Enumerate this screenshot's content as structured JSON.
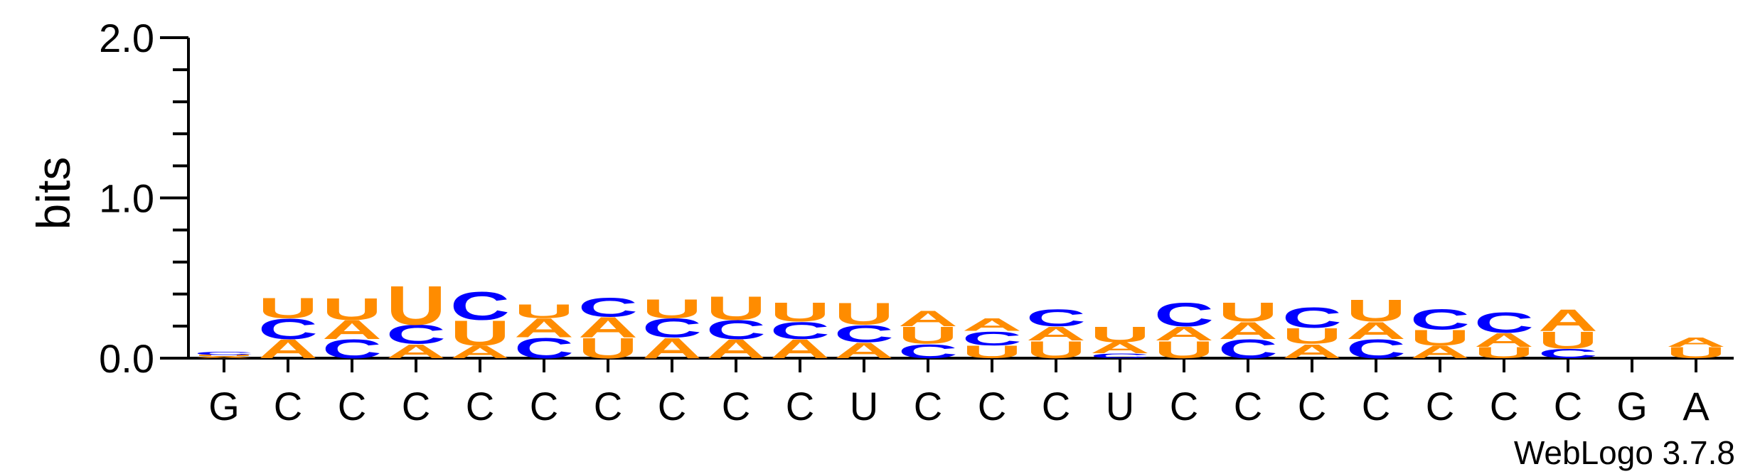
{
  "chart_data": {
    "type": "sequence-logo",
    "title": "",
    "xlabel": "",
    "ylabel": "bits",
    "ylim": [
      0,
      2.0
    ],
    "yticks": [
      "0.0",
      "1.0",
      "2.0"
    ],
    "credit": "WebLogo 3.7.8",
    "colors": {
      "A": "#ff8c00",
      "U": "#ff8c00",
      "C": "#0000ff",
      "G": "#ffa500"
    },
    "categories": [
      "G",
      "C",
      "C",
      "C",
      "C",
      "C",
      "C",
      "C",
      "C",
      "C",
      "U",
      "C",
      "C",
      "C",
      "U",
      "C",
      "C",
      "C",
      "C",
      "C",
      "C",
      "C",
      "G",
      "A"
    ],
    "positions": [
      {
        "label": "G",
        "stack": [
          {
            "letter": "A",
            "bits": 0.01
          },
          {
            "letter": "U",
            "bits": 0.01
          },
          {
            "letter": "C",
            "bits": 0.02
          }
        ]
      },
      {
        "label": "C",
        "stack": [
          {
            "letter": "A",
            "bits": 0.12
          },
          {
            "letter": "C",
            "bits": 0.13
          },
          {
            "letter": "U",
            "bits": 0.13
          }
        ]
      },
      {
        "label": "C",
        "stack": [
          {
            "letter": "C",
            "bits": 0.12
          },
          {
            "letter": "A",
            "bits": 0.12
          },
          {
            "letter": "U",
            "bits": 0.14
          }
        ]
      },
      {
        "label": "C",
        "stack": [
          {
            "letter": "A",
            "bits": 0.09
          },
          {
            "letter": "C",
            "bits": 0.12
          },
          {
            "letter": "U",
            "bits": 0.25
          }
        ]
      },
      {
        "label": "C",
        "stack": [
          {
            "letter": "A",
            "bits": 0.08
          },
          {
            "letter": "U",
            "bits": 0.16
          },
          {
            "letter": "C",
            "bits": 0.18
          }
        ]
      },
      {
        "label": "C",
        "stack": [
          {
            "letter": "C",
            "bits": 0.13
          },
          {
            "letter": "A",
            "bits": 0.12
          },
          {
            "letter": "U",
            "bits": 0.09
          }
        ]
      },
      {
        "label": "C",
        "stack": [
          {
            "letter": "U",
            "bits": 0.13
          },
          {
            "letter": "A",
            "bits": 0.13
          },
          {
            "letter": "C",
            "bits": 0.12
          }
        ]
      },
      {
        "label": "C",
        "stack": [
          {
            "letter": "A",
            "bits": 0.13
          },
          {
            "letter": "C",
            "bits": 0.12
          },
          {
            "letter": "U",
            "bits": 0.12
          }
        ]
      },
      {
        "label": "C",
        "stack": [
          {
            "letter": "A",
            "bits": 0.12
          },
          {
            "letter": "C",
            "bits": 0.12
          },
          {
            "letter": "U",
            "bits": 0.15
          }
        ]
      },
      {
        "label": "C",
        "stack": [
          {
            "letter": "A",
            "bits": 0.12
          },
          {
            "letter": "C",
            "bits": 0.11
          },
          {
            "letter": "U",
            "bits": 0.12
          }
        ]
      },
      {
        "label": "U",
        "stack": [
          {
            "letter": "A",
            "bits": 0.1
          },
          {
            "letter": "C",
            "bits": 0.11
          },
          {
            "letter": "U",
            "bits": 0.14
          }
        ]
      },
      {
        "label": "C",
        "stack": [
          {
            "letter": "C",
            "bits": 0.09
          },
          {
            "letter": "U",
            "bits": 0.11
          },
          {
            "letter": "A",
            "bits": 0.1
          }
        ]
      },
      {
        "label": "C",
        "stack": [
          {
            "letter": "U",
            "bits": 0.08
          },
          {
            "letter": "C",
            "bits": 0.09
          },
          {
            "letter": "A",
            "bits": 0.08
          }
        ]
      },
      {
        "label": "C",
        "stack": [
          {
            "letter": "U",
            "bits": 0.11
          },
          {
            "letter": "A",
            "bits": 0.09
          },
          {
            "letter": "C",
            "bits": 0.11
          }
        ]
      },
      {
        "label": "U",
        "stack": [
          {
            "letter": "C",
            "bits": 0.03
          },
          {
            "letter": "A",
            "bits": 0.07
          },
          {
            "letter": "U",
            "bits": 0.1
          }
        ]
      },
      {
        "label": "C",
        "stack": [
          {
            "letter": "U",
            "bits": 0.11
          },
          {
            "letter": "A",
            "bits": 0.09
          },
          {
            "letter": "C",
            "bits": 0.15
          }
        ]
      },
      {
        "label": "C",
        "stack": [
          {
            "letter": "C",
            "bits": 0.12
          },
          {
            "letter": "A",
            "bits": 0.11
          },
          {
            "letter": "U",
            "bits": 0.12
          }
        ]
      },
      {
        "label": "C",
        "stack": [
          {
            "letter": "A",
            "bits": 0.09
          },
          {
            "letter": "U",
            "bits": 0.1
          },
          {
            "letter": "C",
            "bits": 0.13
          }
        ]
      },
      {
        "label": "C",
        "stack": [
          {
            "letter": "C",
            "bits": 0.12
          },
          {
            "letter": "A",
            "bits": 0.11
          },
          {
            "letter": "U",
            "bits": 0.14
          }
        ]
      },
      {
        "label": "C",
        "stack": [
          {
            "letter": "A",
            "bits": 0.08
          },
          {
            "letter": "U",
            "bits": 0.1
          },
          {
            "letter": "C",
            "bits": 0.13
          }
        ]
      },
      {
        "label": "C",
        "stack": [
          {
            "letter": "U",
            "bits": 0.07
          },
          {
            "letter": "A",
            "bits": 0.09
          },
          {
            "letter": "C",
            "bits": 0.13
          }
        ]
      },
      {
        "label": "C",
        "stack": [
          {
            "letter": "C",
            "bits": 0.06
          },
          {
            "letter": "U",
            "bits": 0.11
          },
          {
            "letter": "A",
            "bits": 0.14
          }
        ]
      },
      {
        "label": "G",
        "stack": []
      },
      {
        "label": "A",
        "stack": [
          {
            "letter": "U",
            "bits": 0.07
          },
          {
            "letter": "A",
            "bits": 0.06
          }
        ]
      }
    ]
  }
}
